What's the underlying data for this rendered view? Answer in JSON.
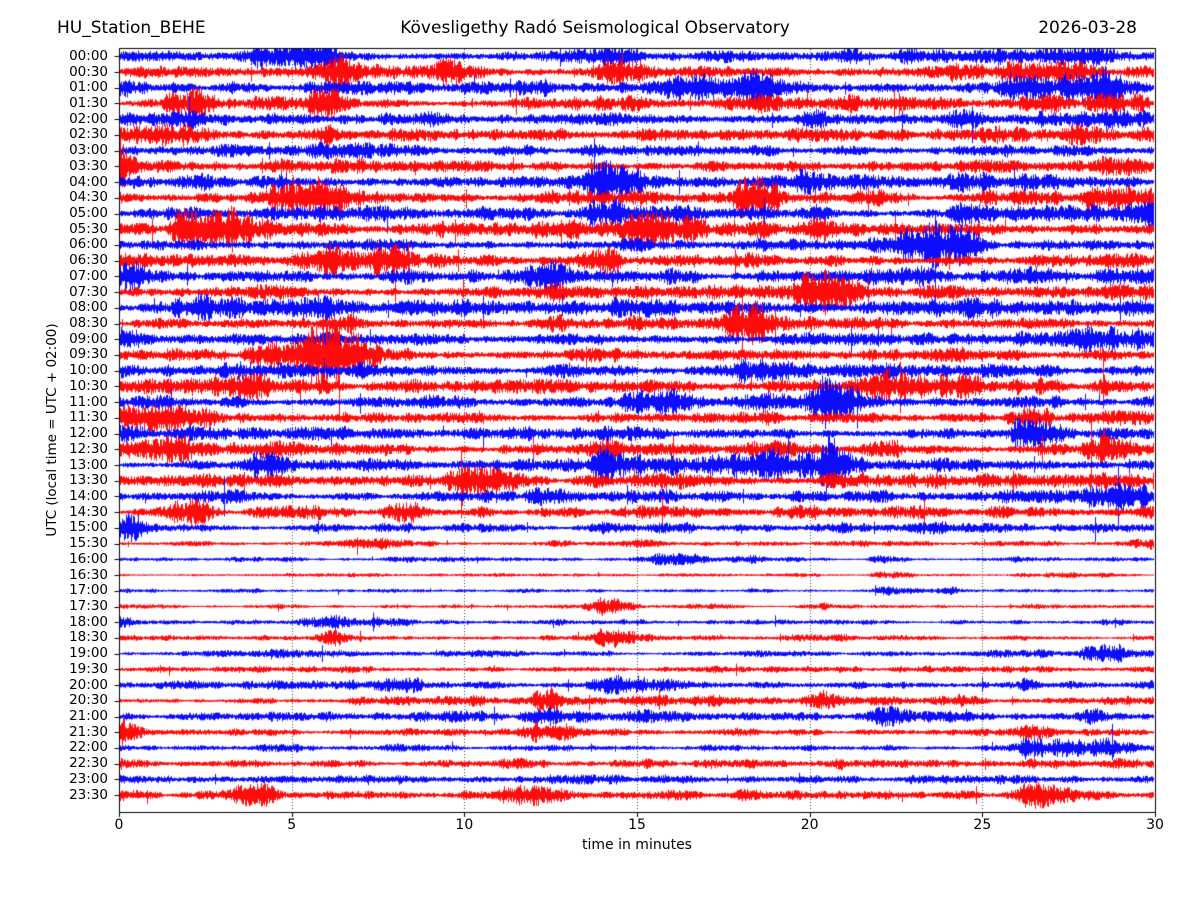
{
  "chart_data": {
    "type": "helicorder",
    "station": "HU_Station_BEHE",
    "observatory": "Kövesligethy Radó Seismological Observatory",
    "date": "2026-03-28",
    "xlabel": "time in minutes",
    "ylabel": "UTC (local time = UTC + 02:00)",
    "x_range": [
      0,
      30
    ],
    "x_ticks": [
      0,
      5,
      10,
      15,
      20,
      25,
      30
    ],
    "grid_x": [
      5,
      10,
      15,
      20,
      25
    ],
    "minutes_per_line": 30,
    "trace_colors": {
      "blue": "#0000ff",
      "red": "#ff0000"
    },
    "rows": [
      {
        "time": "00:00",
        "color": "blue",
        "amplitude": 7.0
      },
      {
        "time": "00:30",
        "color": "red",
        "amplitude": 7.0
      },
      {
        "time": "01:00",
        "color": "blue",
        "amplitude": 6.8
      },
      {
        "time": "01:30",
        "color": "red",
        "amplitude": 7.2
      },
      {
        "time": "02:00",
        "color": "blue",
        "amplitude": 7.0
      },
      {
        "time": "02:30",
        "color": "red",
        "amplitude": 6.6
      },
      {
        "time": "03:00",
        "color": "blue",
        "amplitude": 6.6
      },
      {
        "time": "03:30",
        "color": "red",
        "amplitude": 6.8
      },
      {
        "time": "04:00",
        "color": "blue",
        "amplitude": 7.0
      },
      {
        "time": "04:30",
        "color": "red",
        "amplitude": 6.8
      },
      {
        "time": "05:00",
        "color": "blue",
        "amplitude": 6.5
      },
      {
        "time": "05:30",
        "color": "red",
        "amplitude": 6.6
      },
      {
        "time": "06:00",
        "color": "blue",
        "amplitude": 6.4
      },
      {
        "time": "06:30",
        "color": "red",
        "amplitude": 6.6
      },
      {
        "time": "07:00",
        "color": "blue",
        "amplitude": 6.9
      },
      {
        "time": "07:30",
        "color": "red",
        "amplitude": 7.0
      },
      {
        "time": "08:00",
        "color": "blue",
        "amplitude": 6.6
      },
      {
        "time": "08:30",
        "color": "red",
        "amplitude": 6.9
      },
      {
        "time": "09:00",
        "color": "blue",
        "amplitude": 6.6
      },
      {
        "time": "09:30",
        "color": "red",
        "amplitude": 7.3
      },
      {
        "time": "10:00",
        "color": "blue",
        "amplitude": 7.0
      },
      {
        "time": "10:30",
        "color": "red",
        "amplitude": 7.0
      },
      {
        "time": "11:00",
        "color": "blue",
        "amplitude": 6.9
      },
      {
        "time": "11:30",
        "color": "red",
        "amplitude": 7.0
      },
      {
        "time": "12:00",
        "color": "blue",
        "amplitude": 6.6
      },
      {
        "time": "12:30",
        "color": "red",
        "amplitude": 6.6
      },
      {
        "time": "13:00",
        "color": "blue",
        "amplitude": 6.5
      },
      {
        "time": "13:30",
        "color": "red",
        "amplitude": 6.9
      },
      {
        "time": "14:00",
        "color": "blue",
        "amplitude": 6.4
      },
      {
        "time": "14:30",
        "color": "red",
        "amplitude": 6.0
      },
      {
        "time": "15:00",
        "color": "blue",
        "amplitude": 4.8
      },
      {
        "time": "15:30",
        "color": "red",
        "amplitude": 2.8
      },
      {
        "time": "16:00",
        "color": "blue",
        "amplitude": 2.2
      },
      {
        "time": "16:30",
        "color": "red",
        "amplitude": 1.8
      },
      {
        "time": "17:00",
        "color": "blue",
        "amplitude": 1.8
      },
      {
        "time": "17:30",
        "color": "red",
        "amplitude": 2.2
      },
      {
        "time": "18:00",
        "color": "blue",
        "amplitude": 2.4
      },
      {
        "time": "18:30",
        "color": "red",
        "amplitude": 2.8
      },
      {
        "time": "19:00",
        "color": "blue",
        "amplitude": 3.2
      },
      {
        "time": "19:30",
        "color": "red",
        "amplitude": 3.4
      },
      {
        "time": "20:00",
        "color": "blue",
        "amplitude": 3.8
      },
      {
        "time": "20:30",
        "color": "red",
        "amplitude": 4.2
      },
      {
        "time": "21:00",
        "color": "blue",
        "amplitude": 4.6
      },
      {
        "time": "21:30",
        "color": "red",
        "amplitude": 3.8
      },
      {
        "time": "22:00",
        "color": "blue",
        "amplitude": 3.8
      },
      {
        "time": "22:30",
        "color": "red",
        "amplitude": 4.6
      },
      {
        "time": "23:00",
        "color": "blue",
        "amplitude": 4.2
      },
      {
        "time": "23:30",
        "color": "red",
        "amplitude": 4.4
      }
    ]
  }
}
